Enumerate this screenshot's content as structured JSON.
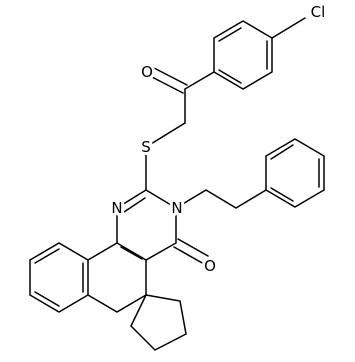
{
  "atoms": [
    "Cl",
    "O",
    "S",
    "N",
    "N",
    "O"
  ]
}
